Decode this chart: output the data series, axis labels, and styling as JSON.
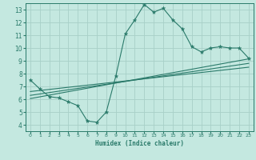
{
  "title": "",
  "xlabel": "Humidex (Indice chaleur)",
  "ylabel": "",
  "bg_color": "#c4e8e0",
  "line_color": "#2a7a6a",
  "grid_color": "#a8d0c8",
  "xlim": [
    -0.5,
    23.5
  ],
  "ylim": [
    3.5,
    13.5
  ],
  "xticks": [
    0,
    1,
    2,
    3,
    4,
    5,
    6,
    7,
    8,
    9,
    10,
    11,
    12,
    13,
    14,
    15,
    16,
    17,
    18,
    19,
    20,
    21,
    22,
    23
  ],
  "yticks": [
    4,
    5,
    6,
    7,
    8,
    9,
    10,
    11,
    12,
    13
  ],
  "main_line": {
    "x": [
      0,
      1,
      2,
      3,
      4,
      5,
      6,
      7,
      8,
      9,
      10,
      11,
      12,
      13,
      14,
      15,
      16,
      17,
      18,
      19,
      20,
      21,
      22,
      23
    ],
    "y": [
      7.5,
      6.8,
      6.2,
      6.1,
      5.8,
      5.5,
      4.3,
      4.2,
      5.0,
      7.8,
      11.1,
      12.2,
      13.4,
      12.8,
      13.1,
      12.2,
      11.5,
      10.1,
      9.7,
      10.0,
      10.1,
      10.0,
      10.0,
      9.2
    ]
  },
  "line2": {
    "x": [
      0,
      23
    ],
    "y": [
      6.05,
      9.15
    ]
  },
  "line3": {
    "x": [
      0,
      23
    ],
    "y": [
      6.3,
      8.8
    ]
  },
  "line4": {
    "x": [
      0,
      23
    ],
    "y": [
      6.6,
      8.5
    ]
  }
}
